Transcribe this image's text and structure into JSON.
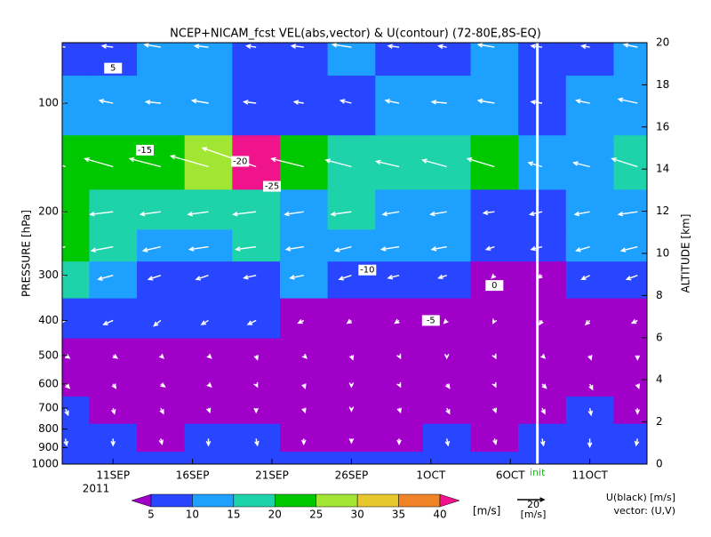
{
  "chart_data": {
    "type": "pressure-time",
    "title": "NCEP+NICAM_fcst VEL(abs,vector) & U(contour)   (72-80E,8S-EQ)",
    "ylabel": "PRESSURE [hPa]",
    "y2label": "ALTITUDE [km]",
    "year": "2011",
    "init_label": "init",
    "init_x": 280.7,
    "log_y": true,
    "xlim": [
      250.8,
      287.6
    ],
    "xticks": [
      {
        "value": 254,
        "label": "11SEP"
      },
      {
        "value": 259,
        "label": "16SEP"
      },
      {
        "value": 264,
        "label": "21SEP"
      },
      {
        "value": 269,
        "label": "26SEP"
      },
      {
        "value": 274,
        "label": "1OCT"
      },
      {
        "value": 279,
        "label": "6OCT"
      },
      {
        "value": 284,
        "label": "11OCT"
      }
    ],
    "ylim": [
      1000,
      68
    ],
    "yticks": [
      100,
      200,
      300,
      400,
      500,
      600,
      700,
      800,
      900,
      1000
    ],
    "y2lim": [
      0,
      20
    ],
    "y2ticks": [
      0,
      2,
      4,
      6,
      8,
      10,
      12,
      14,
      16,
      18,
      20
    ],
    "x": [
      251,
      254,
      257,
      260,
      263,
      266,
      269,
      272,
      275,
      278,
      281,
      284,
      287
    ],
    "levels": [
      1000,
      850,
      700,
      600,
      500,
      400,
      300,
      250,
      200,
      150,
      100,
      70
    ],
    "u": [
      [
        0,
        -1,
        0,
        1,
        0,
        -1,
        0,
        0,
        -1,
        0,
        1,
        0,
        1
      ],
      [
        1,
        0,
        1,
        0,
        1,
        0,
        0,
        0,
        1,
        1,
        1,
        0,
        -1
      ],
      [
        2,
        1,
        2,
        1,
        0,
        1,
        0,
        1,
        2,
        1,
        2,
        1,
        0
      ],
      [
        3,
        2,
        3,
        2,
        1,
        1,
        0,
        1,
        2,
        1,
        3,
        2,
        1
      ],
      [
        3,
        3,
        2,
        2,
        1,
        2,
        1,
        1,
        0,
        1,
        2,
        1,
        0
      ],
      [
        -6,
        -7,
        -5,
        -5,
        -6,
        -4,
        -3,
        -3,
        -2,
        -1,
        -2,
        -3,
        -4
      ],
      [
        -16,
        -11,
        -9,
        -9,
        -9,
        -10,
        -9,
        -8,
        -6,
        -2,
        -3,
        -6,
        -8
      ],
      [
        -21,
        -16,
        -13,
        -14,
        -15,
        -13,
        -12,
        -13,
        -11,
        -6,
        -8,
        -10,
        -12
      ],
      [
        -22,
        -17,
        -15,
        -15,
        -17,
        -14,
        -15,
        -12,
        -12,
        -8,
        -9,
        -11,
        -14
      ],
      [
        -22,
        -21,
        -23,
        -28,
        -40,
        -24,
        -19,
        -17,
        -18,
        -20,
        -10,
        -12,
        -19
      ],
      [
        -12,
        -10,
        -11,
        -12,
        -9,
        -7,
        -8,
        -10,
        -11,
        -12,
        -8,
        -10,
        -14
      ],
      [
        -6,
        -8,
        -12,
        -10,
        -7,
        -9,
        -14,
        -8,
        -6,
        -12,
        -8,
        -6,
        -10
      ]
    ],
    "v": [
      [
        -6,
        -6,
        -5,
        -6,
        -6,
        -5,
        -6,
        -6,
        -5,
        -5,
        -6,
        -7,
        -7
      ],
      [
        -5,
        -5,
        -4,
        -5,
        -5,
        -4,
        -3,
        -4,
        -5,
        -4,
        -5,
        -6,
        -5
      ],
      [
        -5,
        -4,
        -4,
        -3,
        -3,
        -3,
        -2,
        -3,
        -4,
        -3,
        -4,
        -5,
        -4
      ],
      [
        -3,
        -3,
        -2,
        -2,
        -2,
        -3,
        -2,
        -2,
        -3,
        -2,
        -3,
        -4,
        -3
      ],
      [
        -2,
        -2,
        -2,
        -2,
        -3,
        -2,
        -3,
        -2,
        -2,
        -2,
        -2,
        -3,
        -3
      ],
      [
        -4,
        -3,
        -4,
        -3,
        -3,
        -2,
        -2,
        -2,
        -2,
        -2,
        -3,
        -3,
        -2
      ],
      [
        -5,
        -3,
        -3,
        -3,
        -2,
        -2,
        -3,
        -2,
        -2,
        -2,
        -2,
        -3,
        -3
      ],
      [
        -4,
        -3,
        -3,
        -2,
        -2,
        -2,
        -3,
        -2,
        -2,
        -2,
        -2,
        -3,
        -3
      ],
      [
        -3,
        -2,
        -2,
        -2,
        -2,
        -2,
        -2,
        -2,
        -2,
        -1,
        -2,
        -2,
        -2
      ],
      [
        8,
        6,
        6,
        8,
        14,
        6,
        5,
        4,
        5,
        6,
        3,
        3,
        6
      ],
      [
        2,
        2,
        1,
        2,
        1,
        1,
        2,
        2,
        1,
        2,
        1,
        2,
        3
      ],
      [
        1,
        1,
        2,
        1,
        1,
        1,
        2,
        1,
        1,
        2,
        1,
        1,
        2
      ]
    ],
    "color_levels": [
      5,
      10,
      15,
      20,
      25,
      30,
      35,
      40
    ],
    "colors": [
      "#a000c8",
      "#2846ff",
      "#1ea0ff",
      "#1ed2aa",
      "#00c800",
      "#a0e632",
      "#e6c82d",
      "#f08228",
      "#f0148c"
    ],
    "colorbar_unit": "[m/s]",
    "vector_ref": 20,
    "vector_ref_unit": "[m/s]",
    "contour_note": "U(black) [m/s]",
    "vector_note": "vector: (U,V)",
    "contour_labels": [
      {
        "text": "-25",
        "x": 264,
        "y": 170
      },
      {
        "text": "-20",
        "x": 262,
        "y": 145
      },
      {
        "text": "-15",
        "x": 256,
        "y": 135
      },
      {
        "text": "-10",
        "x": 270,
        "y": 290
      },
      {
        "text": "-5",
        "x": 274,
        "y": 400
      },
      {
        "text": "0",
        "x": 278,
        "y": 320
      },
      {
        "text": "5",
        "x": 254,
        "y": 80
      }
    ]
  }
}
